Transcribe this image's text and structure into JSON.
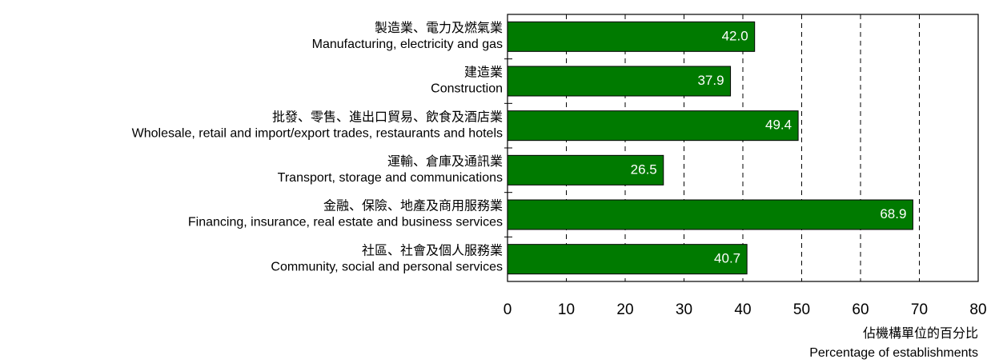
{
  "chart_data": {
    "type": "bar",
    "orientation": "horizontal",
    "categories": [
      [
        "製造業、電力及燃氣業",
        "Manufacturing, electricity and gas"
      ],
      [
        "建造業",
        "Construction"
      ],
      [
        "批發、零售、進出口貿易、飲食及酒店業",
        "Wholesale, retail and import/export trades, restaurants and hotels"
      ],
      [
        "運輸、倉庫及通訊業",
        "Transport, storage and communications"
      ],
      [
        "金融、保險、地產及商用服務業",
        "Financing, insurance, real estate and business services"
      ],
      [
        "社區、社會及個人服務業",
        "Community, social and personal services"
      ]
    ],
    "values": [
      42.0,
      37.9,
      49.4,
      26.5,
      68.9,
      40.7
    ],
    "value_labels": [
      "42.0",
      "37.9",
      "49.4",
      "26.5",
      "68.9",
      "40.7"
    ],
    "color": "#007a00",
    "xlim": [
      0,
      80
    ],
    "xticks": [
      0,
      10,
      20,
      30,
      40,
      50,
      60,
      70,
      80
    ],
    "grid": true,
    "xlabel": [
      "佔機構單位的百分比",
      "Percentage of establishments"
    ]
  }
}
